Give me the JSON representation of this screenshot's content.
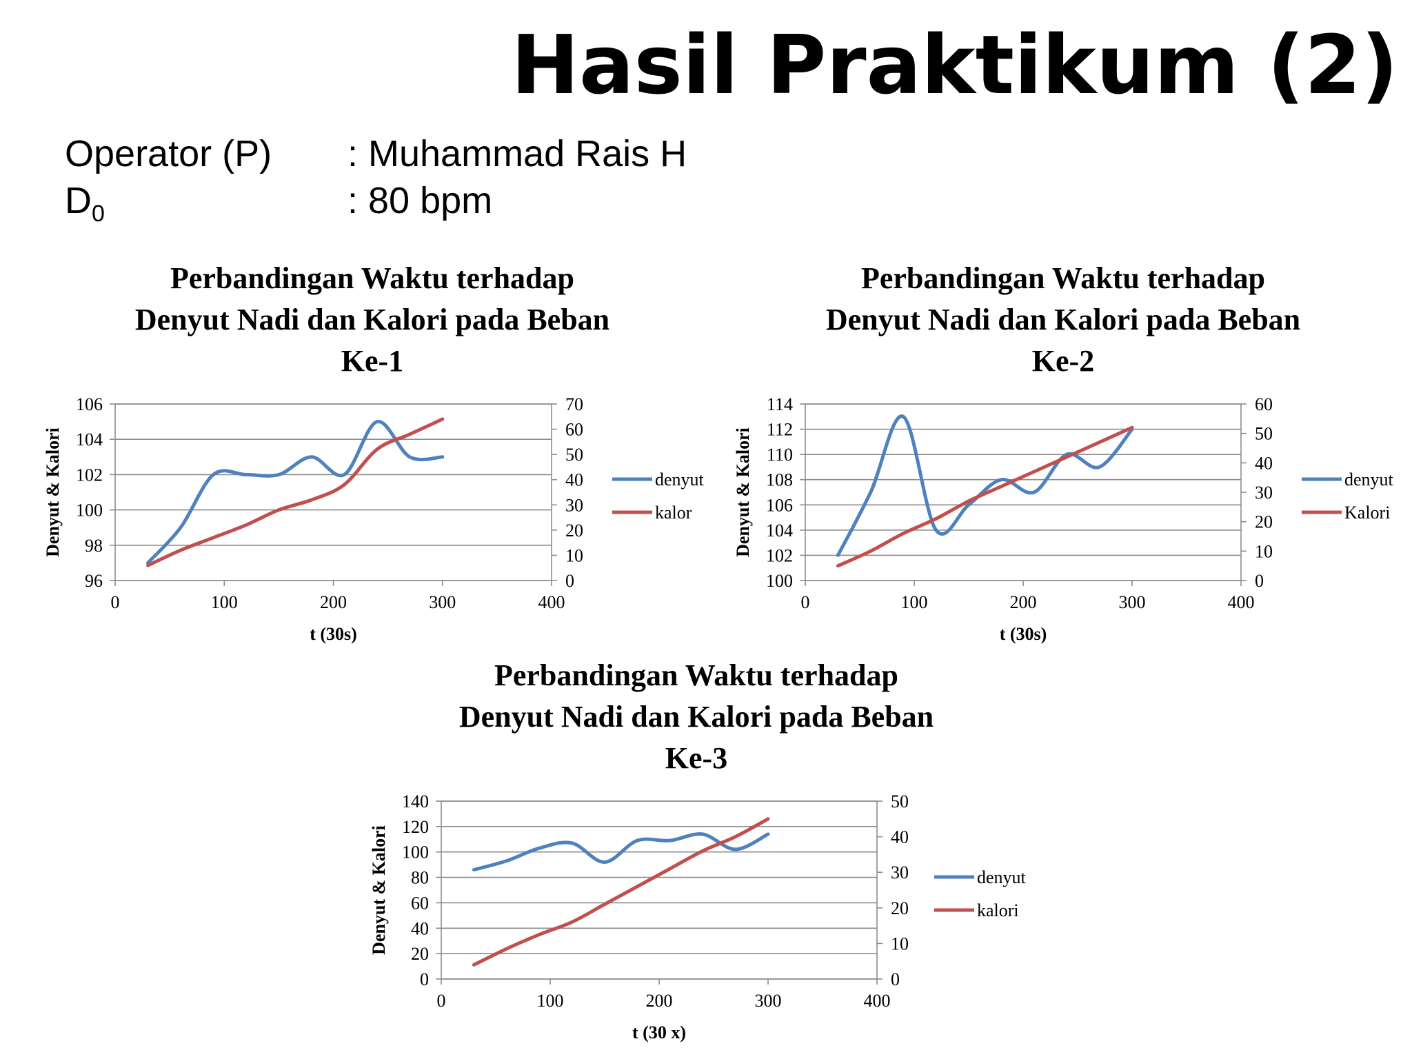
{
  "slide": {
    "title": "Hasil Praktikum (2)",
    "info": [
      {
        "label": "Operator (P)",
        "value": ": Muhammad Rais H"
      },
      {
        "label_main": "D",
        "label_sub": "0",
        "value": ": 80 bpm"
      }
    ]
  },
  "chart_data": [
    {
      "type": "line",
      "title": "Perbandingan Waktu terhadap Denyut Nadi dan Kalori pada Beban Ke-1",
      "title_lines": [
        "Perbandingan Waktu terhadap",
        "Denyut Nadi dan Kalori pada Beban",
        "Ke-1"
      ],
      "xlabel": "t (30s)",
      "ylabel": "Denyut & Kalori",
      "xlim": [
        0,
        400
      ],
      "xticks": [
        0,
        100,
        200,
        300,
        400
      ],
      "ylim": [
        96,
        106
      ],
      "yticks": [
        96,
        98,
        100,
        102,
        104,
        106
      ],
      "y2lim": [
        0,
        70
      ],
      "y2ticks": [
        0,
        10,
        20,
        30,
        40,
        50,
        60,
        70
      ],
      "grid": true,
      "legend": "right",
      "series": [
        {
          "name": "denyut",
          "axis": "left",
          "color": "#4F81BD",
          "x": [
            30,
            60,
            90,
            120,
            150,
            180,
            210,
            240,
            270,
            300
          ],
          "values": [
            97,
            99,
            102,
            102,
            102,
            103,
            102,
            105,
            103,
            103
          ]
        },
        {
          "name": "kalor",
          "axis": "right",
          "color": "#C0504D",
          "x": [
            30,
            60,
            90,
            120,
            150,
            180,
            210,
            240,
            270,
            300
          ],
          "values": [
            6,
            12,
            17,
            22,
            28,
            32,
            38,
            52,
            58,
            64
          ]
        }
      ]
    },
    {
      "type": "line",
      "title": "Perbandingan Waktu terhadap Denyut Nadi dan Kalori pada Beban Ke-2",
      "title_lines": [
        "Perbandingan Waktu terhadap",
        "Denyut Nadi dan Kalori pada Beban",
        "Ke-2"
      ],
      "xlabel": "t (30s)",
      "ylabel": "Denyut & Kalori",
      "xlim": [
        0,
        400
      ],
      "xticks": [
        0,
        100,
        200,
        300,
        400
      ],
      "ylim": [
        100,
        114
      ],
      "yticks": [
        100,
        102,
        104,
        106,
        108,
        110,
        112,
        114
      ],
      "y2lim": [
        0,
        60
      ],
      "y2ticks": [
        0,
        10,
        20,
        30,
        40,
        50,
        60
      ],
      "grid": true,
      "legend": "right",
      "series": [
        {
          "name": "denyut",
          "axis": "left",
          "color": "#4F81BD",
          "x": [
            30,
            60,
            90,
            120,
            150,
            180,
            210,
            240,
            270,
            300
          ],
          "values": [
            102,
            107,
            113,
            104,
            106,
            108,
            107,
            110,
            109,
            112
          ]
        },
        {
          "name": "Kalori",
          "axis": "right",
          "color": "#C0504D",
          "x": [
            30,
            60,
            90,
            120,
            150,
            180,
            210,
            240,
            270,
            300
          ],
          "values": [
            5,
            10,
            16,
            21,
            27,
            32,
            37,
            42,
            47,
            52
          ]
        }
      ]
    },
    {
      "type": "line",
      "title": "Perbandingan Waktu terhadap Denyut Nadi dan Kalori pada Beban Ke-3",
      "title_lines": [
        "Perbandingan Waktu terhadap",
        "Denyut Nadi dan Kalori pada Beban",
        "Ke-3"
      ],
      "xlabel": "t (30 x)",
      "ylabel": "Denyut & Kalori",
      "xlim": [
        0,
        400
      ],
      "xticks": [
        0,
        100,
        200,
        300,
        400
      ],
      "ylim": [
        0,
        140
      ],
      "yticks": [
        0,
        20,
        40,
        60,
        80,
        100,
        120,
        140
      ],
      "y2lim": [
        0,
        50
      ],
      "y2ticks": [
        0,
        10,
        20,
        30,
        40,
        50
      ],
      "grid": true,
      "legend": "right",
      "series": [
        {
          "name": "denyut",
          "axis": "left",
          "color": "#4F81BD",
          "x": [
            30,
            60,
            90,
            120,
            150,
            180,
            210,
            240,
            270,
            300
          ],
          "values": [
            86,
            93,
            103,
            107,
            92,
            109,
            109,
            114,
            102,
            114
          ]
        },
        {
          "name": "kalori",
          "axis": "right",
          "color": "#C0504D",
          "x": [
            30,
            60,
            90,
            120,
            150,
            180,
            210,
            240,
            270,
            300
          ],
          "values": [
            4,
            8.5,
            12.5,
            16,
            21,
            26,
            31,
            36,
            40,
            45
          ]
        }
      ]
    }
  ]
}
